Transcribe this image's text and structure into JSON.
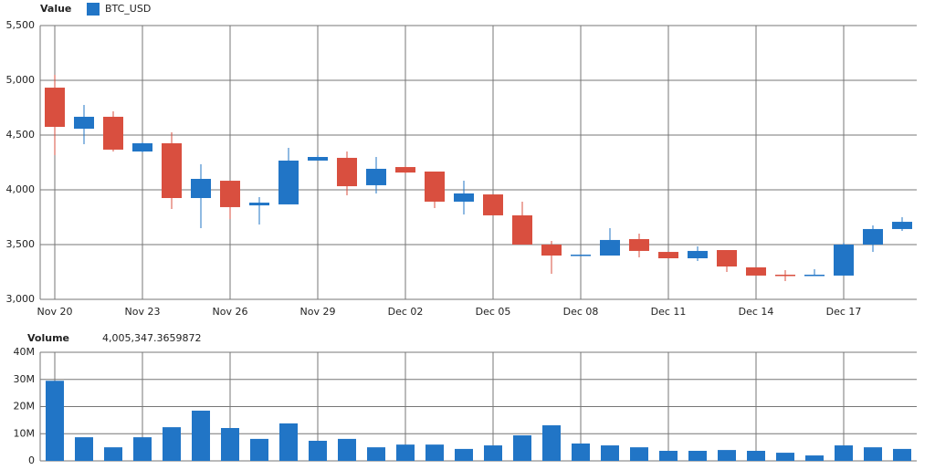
{
  "chart_data": [
    {
      "type": "candlestick",
      "title": "Value",
      "series_name": "BTC_USD",
      "color": "#2175c6",
      "up_color": "#2175c6",
      "down_color": "#d94f3f",
      "categories": [
        "Nov 20",
        null,
        null,
        "Nov 23",
        null,
        null,
        "Nov 26",
        null,
        null,
        "Nov 29",
        null,
        null,
        "Dec 02",
        null,
        null,
        "Dec 05",
        null,
        null,
        "Dec 08",
        null,
        null,
        "Dec 11",
        null,
        null,
        "Dec 14",
        null,
        null,
        "Dec 17",
        null,
        null
      ],
      "open": [
        4933,
        4558,
        4667,
        4350,
        4425,
        3925,
        4083,
        3858,
        3867,
        4267,
        4292,
        4042,
        4208,
        4167,
        3892,
        3958,
        3767,
        3500,
        3400,
        3400,
        3550,
        3433,
        3375,
        3450,
        3292,
        3225,
        3217,
        3217,
        3500,
        3642
      ],
      "high": [
        5050,
        4775,
        4717,
        4433,
        4525,
        4233,
        4083,
        3933,
        4383,
        4317,
        4350,
        4300,
        4217,
        4167,
        4083,
        3958,
        3892,
        3533,
        3408,
        3650,
        3600,
        3433,
        3483,
        3450,
        3292,
        3267,
        3275,
        3517,
        3675,
        3750
      ],
      "low": [
        4317,
        4417,
        4350,
        4342,
        3825,
        3650,
        3733,
        3683,
        3867,
        4267,
        3950,
        3967,
        4150,
        3833,
        3775,
        3767,
        3500,
        3233,
        3400,
        3400,
        3383,
        3375,
        3350,
        3250,
        3217,
        3167,
        3217,
        3217,
        3433,
        3625
      ],
      "close": [
        4575,
        4667,
        4367,
        4425,
        3925,
        4100,
        3842,
        3883,
        4267,
        4300,
        4033,
        4192,
        4158,
        3892,
        3967,
        3767,
        3500,
        3400,
        3408,
        3542,
        3442,
        3375,
        3442,
        3300,
        3217,
        3217,
        3225,
        3500,
        3642,
        3708
      ],
      "ylim": [
        3000,
        5500
      ],
      "yticks": [
        {
          "value": 3000,
          "label": "3,000"
        },
        {
          "value": 3500,
          "label": "3,500"
        },
        {
          "value": 4000,
          "label": "4,000"
        },
        {
          "value": 4500,
          "label": "4,500"
        },
        {
          "value": 5000,
          "label": "5,000"
        },
        {
          "value": 5500,
          "label": "5,500"
        }
      ],
      "grid": true
    },
    {
      "type": "bar",
      "title": "Volume",
      "readout": "4,005,347.3659872",
      "color": "#2175c6",
      "values": [
        29500000,
        8700000,
        5000000,
        8700000,
        12400000,
        18500000,
        12100000,
        8100000,
        13800000,
        7400000,
        8100000,
        5000000,
        6000000,
        6000000,
        4400000,
        5700000,
        9400000,
        13100000,
        6400000,
        5700000,
        5000000,
        3700000,
        3700000,
        4000000,
        3700000,
        3000000,
        2000000,
        5700000,
        5000000,
        4400000
      ],
      "ylim": [
        0,
        40000000
      ],
      "yticks": [
        {
          "value": 0,
          "label": "0"
        },
        {
          "value": 10000000,
          "label": "10M"
        },
        {
          "value": 20000000,
          "label": "20M"
        },
        {
          "value": 30000000,
          "label": "30M"
        },
        {
          "value": 40000000,
          "label": "40M"
        }
      ],
      "grid": true
    }
  ]
}
